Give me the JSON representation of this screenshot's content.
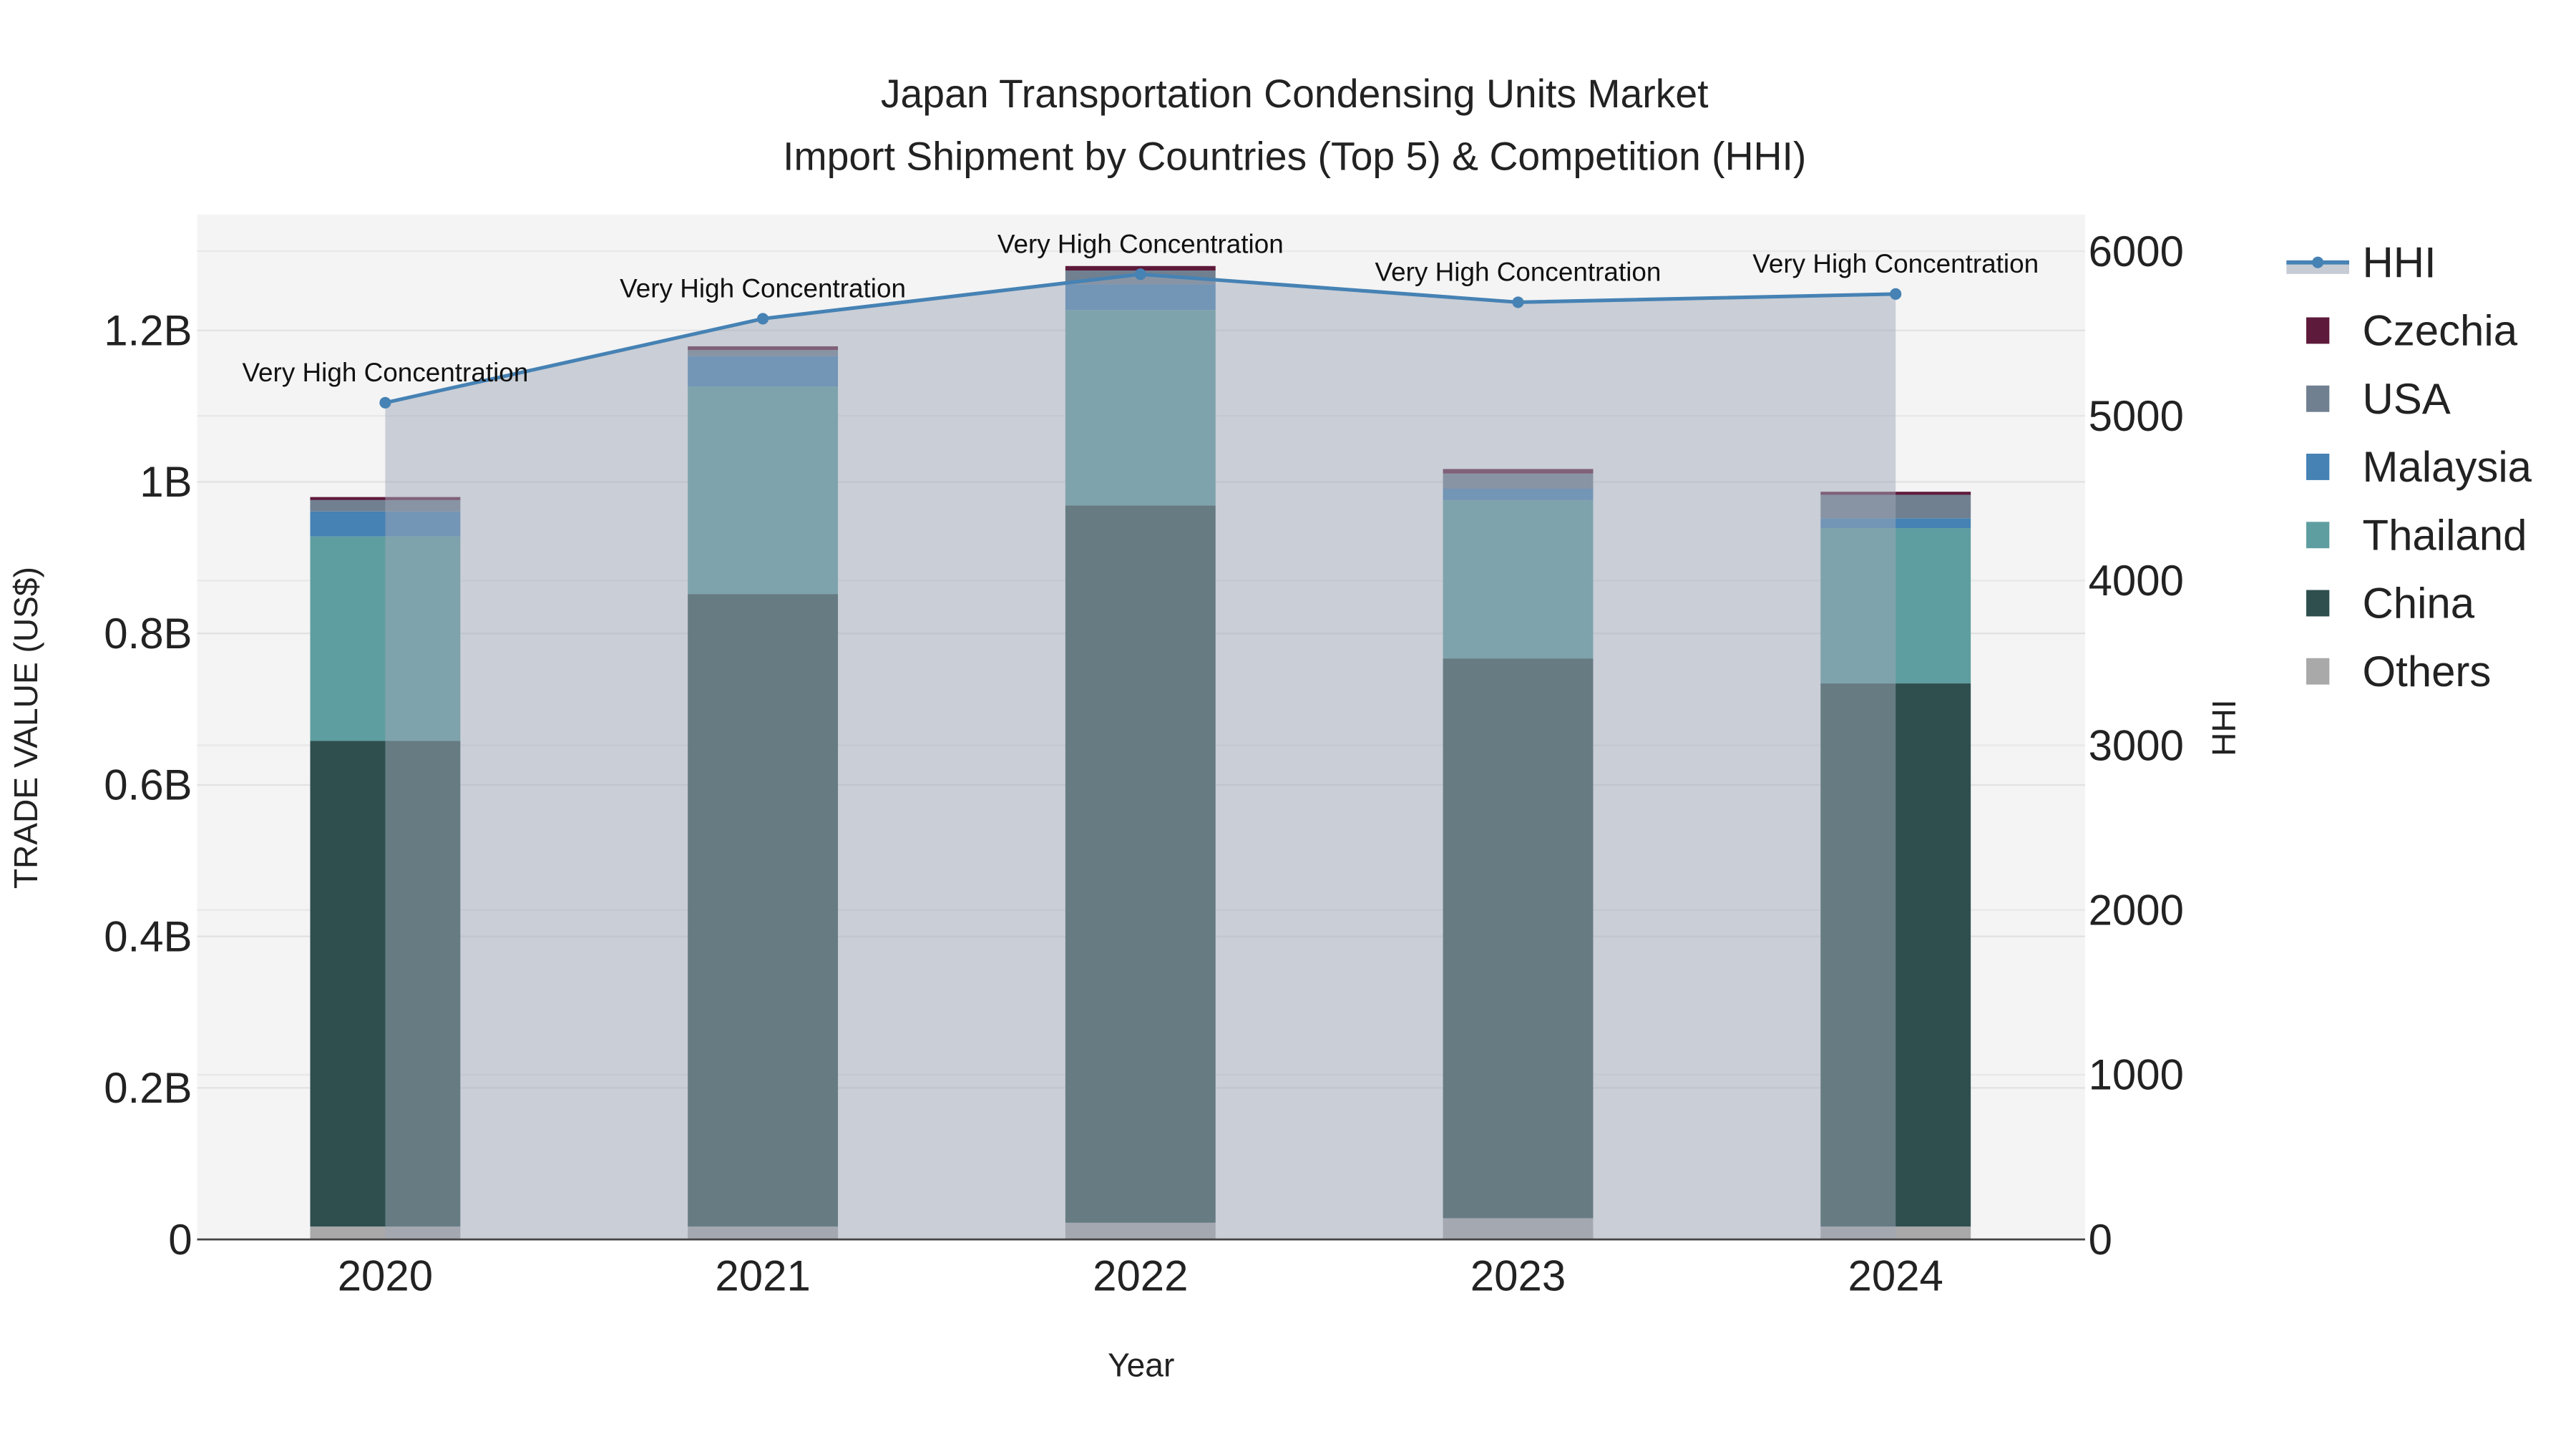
{
  "chart_data": {
    "type": "bar",
    "barmode": "stack",
    "title_line1": "Japan Transportation Condensing Units Market",
    "title_line2": "Import Shipment by Countries (Top 5) & Competition (HHI)",
    "xlabel": "Year",
    "ylabel": "TRADE VALUE (US$)",
    "y2label": "HHI",
    "categories": [
      "2020",
      "2021",
      "2022",
      "2023",
      "2024"
    ],
    "ylim": [
      0,
      1.35
    ],
    "y_unit": "B (billion US$)",
    "yticks": [
      0,
      0.2,
      0.4,
      0.6,
      0.8,
      1.0,
      1.2
    ],
    "ytick_labels": [
      "0",
      "0.2B",
      "0.4B",
      "0.6B",
      "0.8B",
      "1B",
      "1.2B"
    ],
    "y2lim": [
      0,
      6200
    ],
    "y2ticks": [
      0,
      1000,
      2000,
      3000,
      4000,
      5000,
      6000
    ],
    "y2tick_labels": [
      "0",
      "1000",
      "2000",
      "3000",
      "4000",
      "5000",
      "6000"
    ],
    "grid": true,
    "legend_position": "right",
    "series": [
      {
        "name": "Others",
        "color": "#a9a9a9",
        "values": [
          0.017,
          0.017,
          0.022,
          0.028,
          0.017
        ]
      },
      {
        "name": "China",
        "color": "#2f4f4f",
        "values": [
          0.641,
          0.835,
          0.947,
          0.739,
          0.717
        ]
      },
      {
        "name": "Thailand",
        "color": "#5f9ea0",
        "values": [
          0.27,
          0.274,
          0.258,
          0.209,
          0.205
        ]
      },
      {
        "name": "Malaysia",
        "color": "#4682b4",
        "values": [
          0.033,
          0.04,
          0.034,
          0.015,
          0.013
        ]
      },
      {
        "name": "USA",
        "color": "#708090",
        "values": [
          0.015,
          0.008,
          0.018,
          0.02,
          0.031
        ]
      },
      {
        "name": "Czechia",
        "color": "#5e1a3a",
        "values": [
          0.004,
          0.005,
          0.006,
          0.006,
          0.004
        ]
      }
    ],
    "hhi": {
      "name": "HHI",
      "color": "#4682b4",
      "values": [
        5080,
        5590,
        5860,
        5690,
        5740
      ],
      "annotations": [
        "Very High Concentration",
        "Very High Concentration",
        "Very High Concentration",
        "Very High Concentration",
        "Very High Concentration"
      ]
    },
    "legend_order": [
      "HHI",
      "Czechia",
      "USA",
      "Malaysia",
      "Thailand",
      "China",
      "Others"
    ]
  }
}
